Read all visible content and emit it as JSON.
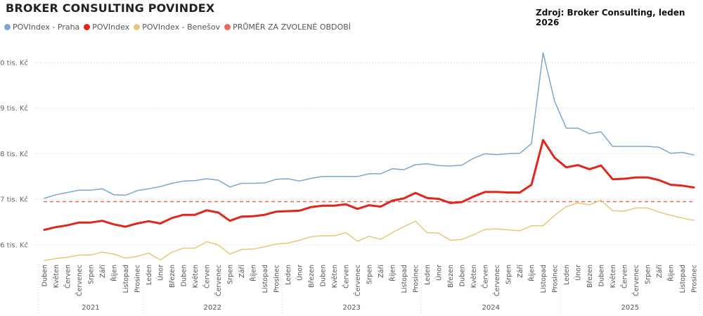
{
  "title": "BROKER CONSULTING POVINDEX",
  "source": "Zdroj: Broker Consulting, leden 2026",
  "colors": {
    "praha": "#7ea6cf",
    "povindex": "#e1261c",
    "benesov": "#e9c77b",
    "average": "#e86a5e"
  },
  "legend": [
    {
      "label": "POVIndex - Praha",
      "color": "#7ea6cf"
    },
    {
      "label": "POVIndex",
      "color": "#e1261c"
    },
    {
      "label": "POVIndex - Benešov",
      "color": "#e9c77b"
    },
    {
      "label": "PRŮMĚR ZA ZVOLENÉ OBDOBÍ",
      "color": "#e86a5e"
    }
  ],
  "chart_data": {
    "type": "line",
    "title": "BROKER CONSULTING POVINDEX",
    "ylim": [
      5.3,
      10.6
    ],
    "yticks": [
      {
        "value": 6,
        "label": "6 tis. Kč"
      },
      {
        "value": 7,
        "label": "7 tis. Kč"
      },
      {
        "value": 8,
        "label": "8 tis. Kč"
      },
      {
        "value": 9,
        "label": "9 tis. Kč"
      },
      {
        "value": 10,
        "label": "10 tis. Kč"
      }
    ],
    "grid": true,
    "legend_position": "top-left",
    "categories": [
      "Duben",
      "Květen",
      "Červen",
      "Červenec",
      "Srpen",
      "Září",
      "Říjen",
      "Listopad",
      "Prosinec",
      "Leden",
      "Únor",
      "Březen",
      "Duben",
      "Květen",
      "Červen",
      "Červenec",
      "Srpen",
      "Září",
      "Říjen",
      "Listopad",
      "Prosinec",
      "Leden",
      "Únor",
      "Březen",
      "Duben",
      "Květen",
      "Červen",
      "Červenec",
      "Srpen",
      "Září",
      "Říjen",
      "Listopad",
      "Prosinec",
      "Leden",
      "Únor",
      "Březen",
      "Duben",
      "Květen",
      "Červen",
      "Červenec",
      "Srpen",
      "Září",
      "Říjen",
      "Listopad",
      "Prosinec",
      "Leden",
      "Únor",
      "Březen",
      "Duben",
      "Květen",
      "Červen",
      "Červenec",
      "Srpen",
      "Září",
      "Říjen",
      "Listopad",
      "Prosinec"
    ],
    "years": [
      {
        "label": "2021",
        "start": 0,
        "end": 8
      },
      {
        "label": "2022",
        "start": 9,
        "end": 20
      },
      {
        "label": "2023",
        "start": 21,
        "end": 32
      },
      {
        "label": "2024",
        "start": 33,
        "end": 44
      },
      {
        "label": "2025",
        "start": 45,
        "end": 56
      }
    ],
    "average": 6.95,
    "series": [
      {
        "name": "POVIndex - Praha",
        "color": "#7ea6cf",
        "width": 1.5,
        "values": [
          7.02,
          7.1,
          7.15,
          7.2,
          7.2,
          7.23,
          7.1,
          7.09,
          7.19,
          7.23,
          7.28,
          7.35,
          7.4,
          7.41,
          7.45,
          7.42,
          7.27,
          7.35,
          7.35,
          7.36,
          7.44,
          7.45,
          7.4,
          7.46,
          7.5,
          7.5,
          7.5,
          7.5,
          7.56,
          7.56,
          7.67,
          7.65,
          7.76,
          7.78,
          7.74,
          7.73,
          7.75,
          7.9,
          8.0,
          7.98,
          8.0,
          8.01,
          8.22,
          10.21,
          9.15,
          8.56,
          8.56,
          8.44,
          8.48,
          8.16,
          8.16,
          8.16,
          8.16,
          8.14,
          8.01,
          8.03,
          7.97
        ]
      },
      {
        "name": "POVIndex",
        "color": "#e1261c",
        "width": 3,
        "values": [
          6.33,
          6.39,
          6.43,
          6.49,
          6.49,
          6.53,
          6.45,
          6.4,
          6.47,
          6.52,
          6.47,
          6.59,
          6.66,
          6.66,
          6.76,
          6.71,
          6.53,
          6.62,
          6.63,
          6.66,
          6.73,
          6.74,
          6.75,
          6.83,
          6.86,
          6.86,
          6.89,
          6.79,
          6.87,
          6.84,
          6.97,
          7.02,
          7.14,
          7.03,
          7.01,
          6.92,
          6.94,
          7.06,
          7.16,
          7.16,
          7.15,
          7.15,
          7.32,
          8.3,
          7.91,
          7.7,
          7.75,
          7.66,
          7.74,
          7.44,
          7.45,
          7.48,
          7.48,
          7.42,
          7.32,
          7.3,
          7.26
        ]
      },
      {
        "name": "POVIndex - Benešov",
        "color": "#e9c77b",
        "width": 1.5,
        "values": [
          5.66,
          5.7,
          5.73,
          5.78,
          5.78,
          5.84,
          5.8,
          5.71,
          5.75,
          5.82,
          5.67,
          5.84,
          5.93,
          5.93,
          6.07,
          6.0,
          5.8,
          5.9,
          5.91,
          5.96,
          6.02,
          6.04,
          6.1,
          6.18,
          6.2,
          6.2,
          6.27,
          6.08,
          6.19,
          6.12,
          6.27,
          6.4,
          6.52,
          6.27,
          6.26,
          6.1,
          6.12,
          6.22,
          6.34,
          6.35,
          6.33,
          6.31,
          6.42,
          6.42,
          6.65,
          6.84,
          6.92,
          6.88,
          6.98,
          6.75,
          6.74,
          6.81,
          6.81,
          6.72,
          6.65,
          6.59,
          6.54
        ]
      }
    ]
  }
}
